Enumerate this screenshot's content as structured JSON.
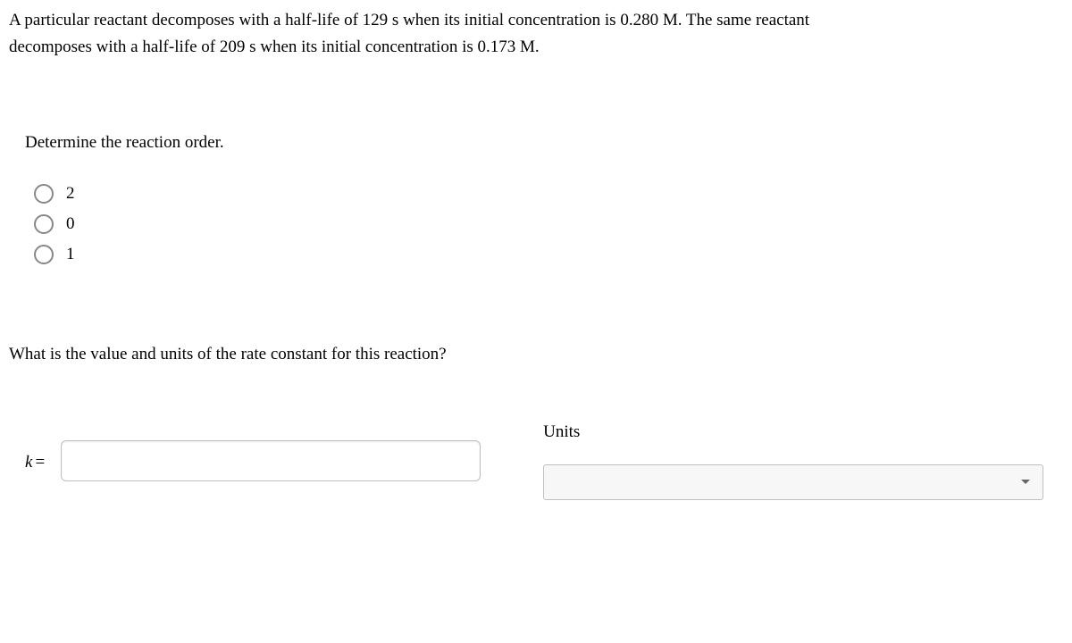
{
  "question": {
    "text_line1": "A particular reactant decomposes with a half-life of 129 s when its initial concentration is 0.280 M. The same reactant",
    "text_line2": "decomposes with a half-life of 209 s when its initial concentration is 0.173 M."
  },
  "part1": {
    "prompt": "Determine the reaction order.",
    "options": [
      {
        "label": "2"
      },
      {
        "label": "0"
      },
      {
        "label": "1"
      }
    ]
  },
  "part2": {
    "prompt": "What is the value and units of the rate constant for this reaction?",
    "k_symbol": "k",
    "equals": "=",
    "value": "",
    "units_label": "Units",
    "units_value": ""
  },
  "colors": {
    "text": "#000000",
    "border": "#bfbfbf",
    "radio_border": "#888888",
    "select_bg": "#f7f7f7",
    "chevron": "#666666"
  }
}
